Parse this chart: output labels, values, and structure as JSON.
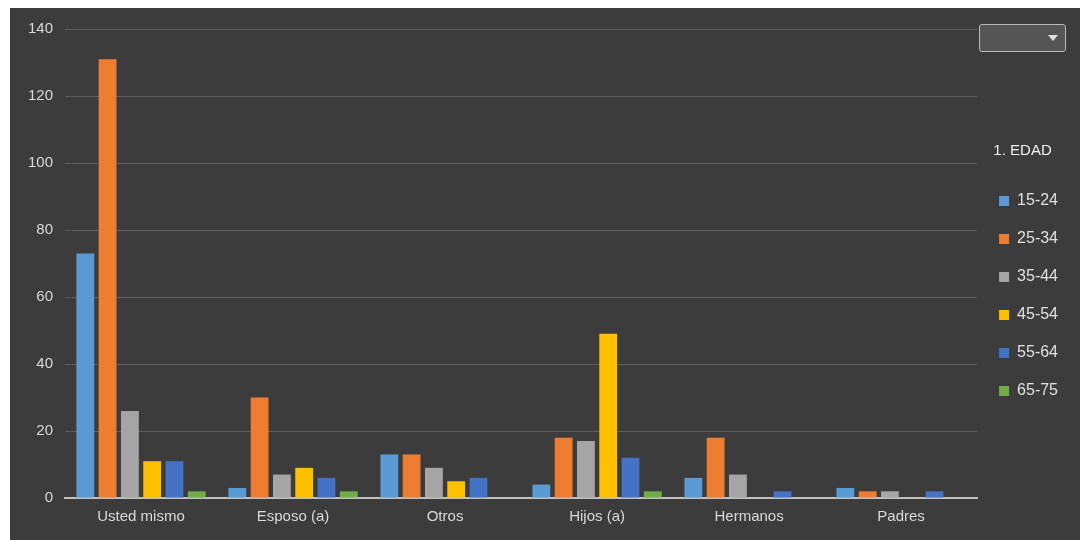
{
  "chart_data": {
    "type": "bar",
    "legend_title": "1. EDAD",
    "categories": [
      "Usted mismo",
      "Esposo (a)",
      "Otros",
      "Hijos (a)",
      "Hermanos",
      "Padres"
    ],
    "series": [
      {
        "name": "15-24",
        "color": "#5b9bd5",
        "values": [
          73,
          3,
          13,
          4,
          6,
          3
        ]
      },
      {
        "name": "25-34",
        "color": "#ed7d31",
        "values": [
          131,
          30,
          13,
          18,
          18,
          2
        ]
      },
      {
        "name": "35-44",
        "color": "#a5a5a5",
        "values": [
          26,
          7,
          9,
          17,
          7,
          2
        ]
      },
      {
        "name": "45-54",
        "color": "#ffc000",
        "values": [
          11,
          9,
          5,
          49,
          0,
          0
        ]
      },
      {
        "name": "55-64",
        "color": "#4472c4",
        "values": [
          11,
          6,
          6,
          12,
          2,
          2
        ]
      },
      {
        "name": "65-75",
        "color": "#70ad47",
        "values": [
          2,
          2,
          0,
          2,
          0,
          0
        ]
      }
    ],
    "ylim": [
      0,
      140
    ],
    "yticks": [
      0,
      20,
      40,
      60,
      80,
      100,
      120,
      140
    ],
    "grid": "y",
    "legend": "right"
  }
}
